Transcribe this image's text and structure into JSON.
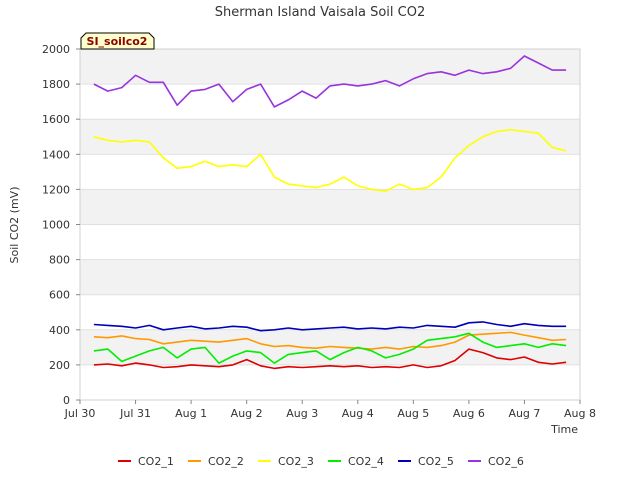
{
  "chart_data": {
    "type": "line",
    "title": "Sherman Island Vaisala Soil CO2",
    "xlabel": "Time",
    "ylabel": "Soil CO2 (mV)",
    "tag": "SI_soilco2",
    "xlim": [
      0,
      9
    ],
    "ylim": [
      0,
      2000
    ],
    "x_ticks": [
      {
        "value": 0,
        "label": "Jul 30"
      },
      {
        "value": 1,
        "label": "Jul 31"
      },
      {
        "value": 2,
        "label": "Aug 1"
      },
      {
        "value": 3,
        "label": "Aug 2"
      },
      {
        "value": 4,
        "label": "Aug 3"
      },
      {
        "value": 5,
        "label": "Aug 4"
      },
      {
        "value": 6,
        "label": "Aug 5"
      },
      {
        "value": 7,
        "label": "Aug 6"
      },
      {
        "value": 8,
        "label": "Aug 7"
      },
      {
        "value": 9,
        "label": "Aug 8"
      }
    ],
    "y_ticks": [
      0,
      200,
      400,
      600,
      800,
      1000,
      1200,
      1400,
      1600,
      1800,
      2000
    ],
    "grid": true,
    "legend_position": "bottom",
    "x": [
      0.25,
      0.5,
      0.75,
      1.0,
      1.25,
      1.5,
      1.75,
      2.0,
      2.25,
      2.5,
      2.75,
      3.0,
      3.25,
      3.5,
      3.75,
      4.0,
      4.25,
      4.5,
      4.75,
      5.0,
      5.25,
      5.5,
      5.75,
      6.0,
      6.25,
      6.5,
      6.75,
      7.0,
      7.25,
      7.5,
      7.75,
      8.0,
      8.25,
      8.5,
      8.75
    ],
    "series": [
      {
        "name": "CO2_1",
        "color": "#dd0000",
        "values": [
          200,
          205,
          195,
          210,
          200,
          185,
          190,
          200,
          195,
          190,
          200,
          230,
          195,
          180,
          190,
          185,
          190,
          195,
          190,
          195,
          185,
          190,
          185,
          200,
          185,
          195,
          225,
          290,
          270,
          240,
          230,
          245,
          215,
          205,
          215
        ]
      },
      {
        "name": "CO2_2",
        "color": "#ff9900",
        "values": [
          360,
          355,
          365,
          350,
          345,
          320,
          330,
          340,
          335,
          330,
          340,
          350,
          320,
          305,
          310,
          300,
          295,
          305,
          300,
          295,
          290,
          300,
          290,
          305,
          300,
          310,
          330,
          370,
          375,
          380,
          385,
          370,
          355,
          340,
          345
        ]
      },
      {
        "name": "CO2_3",
        "color": "#ffff00",
        "values": [
          1500,
          1480,
          1470,
          1480,
          1470,
          1380,
          1320,
          1330,
          1360,
          1330,
          1340,
          1330,
          1400,
          1270,
          1230,
          1220,
          1210,
          1230,
          1270,
          1220,
          1200,
          1190,
          1230,
          1200,
          1210,
          1270,
          1380,
          1450,
          1500,
          1530,
          1540,
          1530,
          1520,
          1440,
          1420
        ]
      },
      {
        "name": "CO2_4",
        "color": "#00ee00",
        "values": [
          280,
          290,
          220,
          250,
          280,
          300,
          240,
          290,
          300,
          210,
          250,
          280,
          270,
          210,
          260,
          270,
          280,
          230,
          270,
          300,
          280,
          240,
          260,
          290,
          340,
          350,
          360,
          380,
          330,
          300,
          310,
          320,
          300,
          320,
          310
        ]
      },
      {
        "name": "CO2_5",
        "color": "#0000bb",
        "values": [
          430,
          425,
          420,
          410,
          425,
          400,
          410,
          420,
          405,
          410,
          420,
          415,
          395,
          400,
          410,
          400,
          405,
          410,
          415,
          405,
          410,
          405,
          415,
          410,
          425,
          420,
          415,
          440,
          445,
          430,
          420,
          435,
          425,
          420,
          420
        ]
      },
      {
        "name": "CO2_6",
        "color": "#9933dd",
        "values": [
          1800,
          1760,
          1780,
          1850,
          1810,
          1810,
          1680,
          1760,
          1770,
          1800,
          1700,
          1770,
          1800,
          1670,
          1710,
          1760,
          1720,
          1790,
          1800,
          1790,
          1800,
          1820,
          1790,
          1830,
          1860,
          1870,
          1850,
          1880,
          1860,
          1870,
          1890,
          1960,
          1920,
          1880,
          1880
        ]
      }
    ]
  }
}
